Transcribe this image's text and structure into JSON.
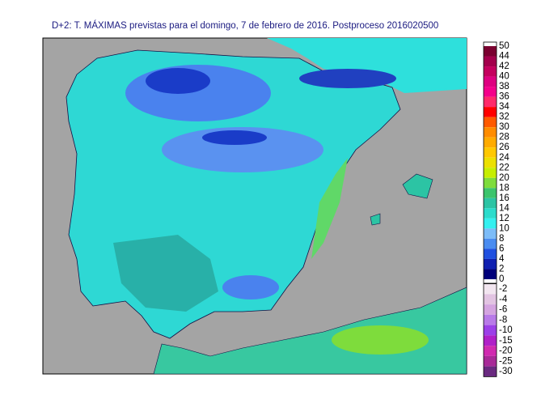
{
  "title": "D+2: T. MÁXIMAS previstas para el domingo, 7 de febrero de 2016. Postproceso 2016020500",
  "scale_top": {
    "labels": [
      "50",
      "44",
      "42",
      "40",
      "38",
      "36",
      "34",
      "32",
      "30",
      "28",
      "26",
      "24",
      "22",
      "20",
      "18",
      "16",
      "14",
      "12",
      "10",
      "8",
      "6",
      "4",
      "2",
      "0"
    ],
    "colors": [
      "#7a0030",
      "#a3004c",
      "#c4005e",
      "#de0080",
      "#f4008a",
      "#ff2a6a",
      "#ff0000",
      "#ff5a00",
      "#ff8c00",
      "#ffab00",
      "#ffc800",
      "#ece000",
      "#c6ee00",
      "#7edc3c",
      "#3cc46c",
      "#2cc4a4",
      "#2cdccc",
      "#34f0f0",
      "#7cbcf8",
      "#4a8cf0",
      "#2050e0",
      "#1020b0",
      "#00007a"
    ]
  },
  "scale_bottom": {
    "labels": [
      "-2",
      "-4",
      "-6",
      "-8",
      "-10",
      "-15",
      "-20",
      "-25",
      "-30"
    ],
    "colors": [
      "#f2e6f0",
      "#e2c4e2",
      "#d4a4e0",
      "#b87ae8",
      "#9c40e8",
      "#b020c8",
      "#d02ab0",
      "#a82a98",
      "#6a2a80"
    ]
  }
}
